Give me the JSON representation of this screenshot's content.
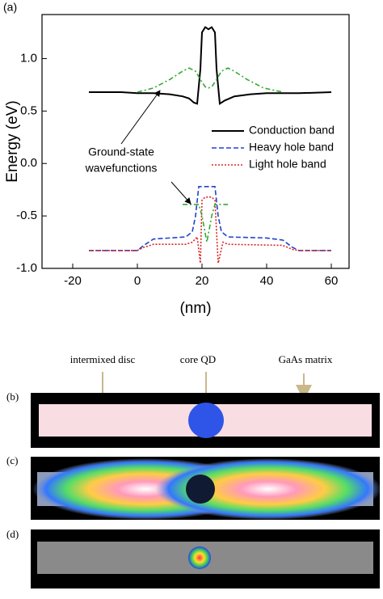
{
  "chart_data": {
    "type": "line",
    "panel_label": "(a)",
    "xlabel": "(nm)",
    "ylabel": "Energy (eV)",
    "xlim": [
      -29.5,
      65.5
    ],
    "ylim": [
      -1.0,
      1.42
    ],
    "xticks": [
      -20,
      0,
      20,
      40,
      60
    ],
    "yticks": [
      {
        "value": -1.0,
        "label": "-1.0"
      },
      -0.5,
      {
        "value": 0.0,
        "label": "0.0"
      },
      0.5,
      {
        "value": 1.0,
        "label": "1.0"
      }
    ],
    "legend": "center right",
    "series": [
      {
        "name": "Conduction band",
        "color": "#000000",
        "style": "solid",
        "x": [
          -15,
          -5,
          0,
          5,
          10,
          14,
          16,
          17.5,
          18.5,
          19.5,
          20,
          21,
          22,
          23,
          24,
          24.5,
          25.5,
          27,
          30,
          35,
          40,
          50,
          60
        ],
        "values": [
          0.68,
          0.68,
          0.67,
          0.67,
          0.66,
          0.64,
          0.62,
          0.58,
          0.57,
          0.9,
          1.25,
          1.3,
          1.28,
          1.3,
          1.25,
          0.9,
          0.57,
          0.6,
          0.64,
          0.66,
          0.67,
          0.67,
          0.68
        ]
      },
      {
        "name": "Heavy hole band",
        "color": "#2244cc",
        "style": "dashed",
        "x": [
          -15,
          0,
          2,
          5,
          15,
          17,
          18,
          19,
          22,
          24,
          25,
          26,
          28,
          40,
          45,
          48,
          50,
          60
        ],
        "values": [
          -0.83,
          -0.83,
          -0.78,
          -0.72,
          -0.7,
          -0.65,
          -0.5,
          -0.22,
          -0.22,
          -0.22,
          -0.5,
          -0.65,
          -0.7,
          -0.71,
          -0.73,
          -0.8,
          -0.83,
          -0.83
        ]
      },
      {
        "name": "Light hole band",
        "color": "#dd2222",
        "style": "dotted",
        "x": [
          -15,
          0,
          2,
          5,
          15,
          17,
          18.5,
          19.5,
          20,
          21,
          23,
          24,
          25,
          26.5,
          28,
          45,
          48,
          50,
          60
        ],
        "values": [
          -0.83,
          -0.83,
          -0.8,
          -0.77,
          -0.77,
          -0.75,
          -0.7,
          -0.95,
          -0.35,
          -0.32,
          -0.32,
          -0.35,
          -0.95,
          -0.75,
          -0.77,
          -0.78,
          -0.82,
          -0.83,
          -0.83
        ]
      },
      {
        "color": "#33aa33",
        "style": "dashdot",
        "x": [
          0,
          5,
          10,
          14,
          16,
          18,
          19.5,
          21,
          22,
          23,
          24.5,
          26,
          28,
          30,
          34,
          39,
          45
        ],
        "values": [
          0.68,
          0.72,
          0.8,
          0.88,
          0.91,
          0.88,
          0.8,
          0.73,
          0.72,
          0.73,
          0.8,
          0.88,
          0.91,
          0.88,
          0.8,
          0.72,
          0.68
        ]
      },
      {
        "color": "#33aa33",
        "style": "dashdot",
        "x": [
          14,
          19,
          20,
          21.5,
          23,
          24,
          28
        ],
        "values": [
          -0.39,
          -0.39,
          -0.5,
          -0.75,
          -0.5,
          -0.39,
          -0.39
        ]
      }
    ],
    "annotation": [
      "Ground-state",
      "wavefunctions"
    ]
  },
  "images": {
    "labels": [
      "intermixed disc",
      "core QD",
      "GaAs matrix"
    ],
    "panels": [
      "(b)",
      "(c)",
      "(d)"
    ]
  }
}
